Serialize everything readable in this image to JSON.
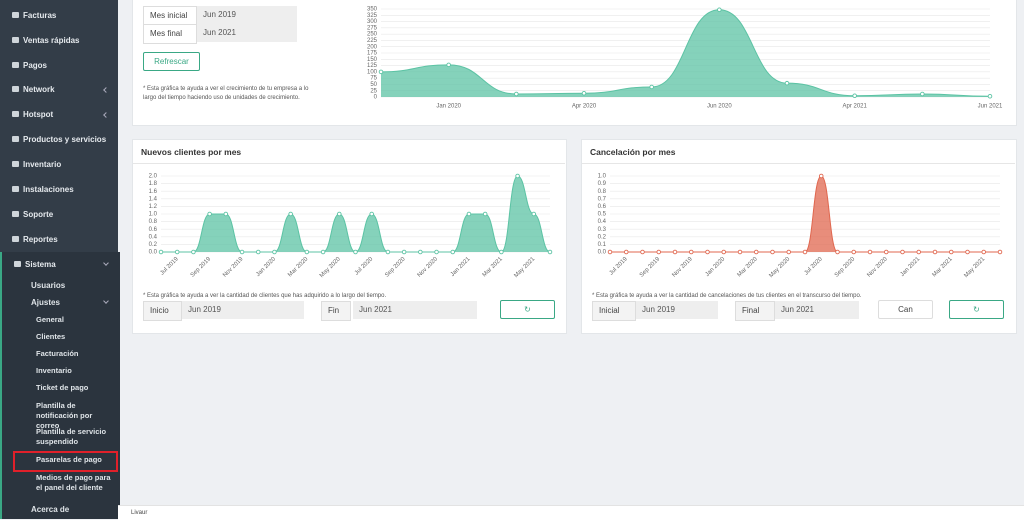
{
  "sidebar": {
    "items": [
      "Facturas",
      "Ventas rápidas",
      "Pagos",
      "Network",
      "Hotspot",
      "Productos y servicios",
      "Inventario",
      "Instalaciones",
      "Soporte",
      "Reportes"
    ],
    "sistema": "Sistema",
    "sistema_items": [
      "Usuarios",
      "Ajustes"
    ],
    "ajustes_items": [
      "General",
      "Clientes",
      "Facturación",
      "Inventario",
      "Ticket de pago",
      "Plantilla de notificación por correo",
      "Plantilla de servicio suspendido",
      "Pasarelas de pago",
      "Medios de pago para el panel del cliente"
    ],
    "about": "Acerca de"
  },
  "top_panel": {
    "start_label": "Mes inicial",
    "start_value": "Jun 2019",
    "end_label": "Mes final",
    "end_value": "Jun 2021",
    "button": "Refrescar",
    "note": "* Esta gráfica te ayuda a ver el crecimiento de tu empresa a lo largo del tiempo haciendo uso de unidades de crecimiento."
  },
  "clients_panel": {
    "title": "Nuevos clientes por mes",
    "note": "* Esta gráfica te ayuda a ver la cantidad de clientes que has adquirido a lo largo del tiempo.",
    "start_label": "Inicio",
    "start_value": "Jun 2019",
    "end_label": "Fin",
    "end_value": "Jun 2021"
  },
  "cancel_panel": {
    "title": "Cancelación por mes",
    "note": "* Esta gráfica te ayuda a ver la cantidad de cancelaciones de tus clientes en el transcurso del tiempo.",
    "start_label": "Inicial",
    "start_value": "Jun 2019",
    "end_label": "Final",
    "end_value": "Jun 2021",
    "button": "Can"
  },
  "footer": "Livaur",
  "chart_data": [
    {
      "type": "area",
      "categories": [
        null,
        "Jan 2020",
        null,
        "Apr 2020",
        null,
        "Jun 2020",
        null,
        "Apr 2021",
        null,
        "Jun 2021"
      ],
      "values": [
        100,
        128,
        12,
        15,
        40,
        347,
        55,
        5,
        12,
        3
      ],
      "color": "#5cc3a4",
      "ylim": [
        0,
        350
      ],
      "yticks": [
        0,
        25,
        50,
        75,
        100,
        125,
        150,
        175,
        200,
        225,
        250,
        275,
        300,
        325,
        350
      ],
      "grid": true
    },
    {
      "type": "area",
      "categories": [
        null,
        "Jul 2019",
        null,
        "Sep 2019",
        null,
        "Nov 2019",
        null,
        "Jan 2020",
        null,
        "Mar 2020",
        null,
        "May 2020",
        null,
        "Jul 2020",
        null,
        "Sep 2020",
        null,
        "Nov 2020",
        null,
        "Jan 2021",
        null,
        "Mar 2021",
        null,
        "May 2021",
        null
      ],
      "values": [
        0,
        0,
        0,
        1,
        1,
        0,
        0,
        0,
        1,
        0,
        0,
        1,
        0,
        1,
        0,
        0,
        0,
        0,
        0,
        1,
        1,
        0,
        2,
        1,
        0
      ],
      "color": "#5cc3a4",
      "ylim": [
        0,
        2
      ],
      "yticks": [
        {
          "value": 0,
          "label": "0.0"
        },
        0.2,
        0.4,
        0.6,
        0.8,
        {
          "value": 1,
          "label": "1.0"
        },
        1.2,
        1.4,
        1.6,
        1.8,
        {
          "value": 2,
          "label": "2.0"
        }
      ],
      "grid": true
    },
    {
      "type": "area",
      "categories": [
        null,
        "Jul 2019",
        null,
        "Sep 2019",
        null,
        "Nov 2019",
        null,
        "Jan 2020",
        null,
        "Mar 2020",
        null,
        "May 2020",
        null,
        "Jul 2020",
        null,
        "Sep 2020",
        null,
        "Nov 2020",
        null,
        "Jan 2021",
        null,
        "Mar 2021",
        null,
        "May 2021",
        null
      ],
      "values": [
        0,
        0,
        0,
        0,
        0,
        0,
        0,
        0,
        0,
        0,
        0,
        0,
        0,
        1,
        0,
        0,
        0,
        0,
        0,
        0,
        0,
        0,
        0,
        0,
        0
      ],
      "color": "#e0674f",
      "ylim": [
        0,
        1
      ],
      "yticks": [
        {
          "value": 0,
          "label": "0.0"
        },
        0.1,
        0.2,
        0.3,
        0.4,
        0.5,
        0.6,
        0.7,
        0.8,
        0.9,
        {
          "value": 1,
          "label": "1.0"
        }
      ],
      "grid": true
    }
  ]
}
